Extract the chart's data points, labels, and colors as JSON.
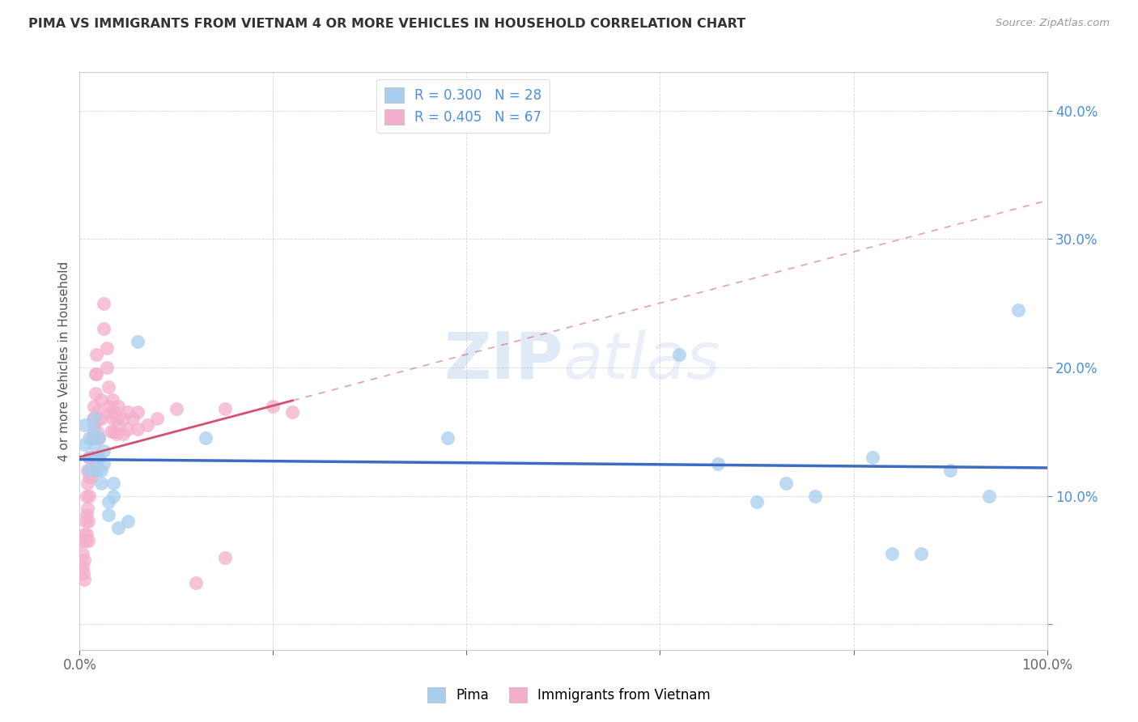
{
  "title": "PIMA VS IMMIGRANTS FROM VIETNAM 4 OR MORE VEHICLES IN HOUSEHOLD CORRELATION CHART",
  "source": "Source: ZipAtlas.com",
  "ylabel": "4 or more Vehicles in Household",
  "xlim": [
    0.0,
    1.0
  ],
  "ylim": [
    -0.02,
    0.43
  ],
  "yticks": [
    0.0,
    0.1,
    0.2,
    0.3,
    0.4
  ],
  "ytick_labels": [
    "",
    "10.0%",
    "20.0%",
    "30.0%",
    "40.0%"
  ],
  "xticks": [
    0.0,
    0.2,
    0.4,
    0.6,
    0.8,
    1.0
  ],
  "xtick_labels": [
    "0.0%",
    "",
    "",
    "",
    "",
    "100.0%"
  ],
  "color_blue": "#A8CEEE",
  "color_pink": "#F4AECB",
  "color_blue_line": "#3B6BC4",
  "color_pink_line": "#D45070",
  "watermark_color": "#C5D8F0",
  "pima_points": [
    [
      0.005,
      0.14
    ],
    [
      0.005,
      0.155
    ],
    [
      0.01,
      0.145
    ],
    [
      0.01,
      0.13
    ],
    [
      0.01,
      0.12
    ],
    [
      0.015,
      0.16
    ],
    [
      0.015,
      0.15
    ],
    [
      0.015,
      0.14
    ],
    [
      0.018,
      0.13
    ],
    [
      0.018,
      0.12
    ],
    [
      0.02,
      0.145
    ],
    [
      0.02,
      0.13
    ],
    [
      0.022,
      0.12
    ],
    [
      0.022,
      0.11
    ],
    [
      0.025,
      0.135
    ],
    [
      0.025,
      0.125
    ],
    [
      0.03,
      0.095
    ],
    [
      0.03,
      0.085
    ],
    [
      0.035,
      0.11
    ],
    [
      0.035,
      0.1
    ],
    [
      0.04,
      0.075
    ],
    [
      0.05,
      0.08
    ],
    [
      0.06,
      0.22
    ],
    [
      0.13,
      0.145
    ],
    [
      0.38,
      0.145
    ],
    [
      0.62,
      0.21
    ],
    [
      0.66,
      0.125
    ],
    [
      0.7,
      0.095
    ],
    [
      0.73,
      0.11
    ],
    [
      0.76,
      0.1
    ],
    [
      0.82,
      0.13
    ],
    [
      0.84,
      0.055
    ],
    [
      0.87,
      0.055
    ],
    [
      0.9,
      0.12
    ],
    [
      0.94,
      0.1
    ],
    [
      0.97,
      0.245
    ]
  ],
  "vietnam_points": [
    [
      0.002,
      0.065
    ],
    [
      0.003,
      0.055
    ],
    [
      0.003,
      0.045
    ],
    [
      0.004,
      0.04
    ],
    [
      0.005,
      0.07
    ],
    [
      0.005,
      0.05
    ],
    [
      0.005,
      0.035
    ],
    [
      0.006,
      0.08
    ],
    [
      0.006,
      0.065
    ],
    [
      0.007,
      0.1
    ],
    [
      0.007,
      0.085
    ],
    [
      0.007,
      0.07
    ],
    [
      0.008,
      0.12
    ],
    [
      0.008,
      0.11
    ],
    [
      0.008,
      0.09
    ],
    [
      0.009,
      0.08
    ],
    [
      0.009,
      0.065
    ],
    [
      0.01,
      0.13
    ],
    [
      0.01,
      0.115
    ],
    [
      0.01,
      0.1
    ],
    [
      0.012,
      0.13
    ],
    [
      0.012,
      0.115
    ],
    [
      0.013,
      0.145
    ],
    [
      0.013,
      0.13
    ],
    [
      0.013,
      0.12
    ],
    [
      0.014,
      0.16
    ],
    [
      0.014,
      0.145
    ],
    [
      0.015,
      0.17
    ],
    [
      0.015,
      0.155
    ],
    [
      0.016,
      0.195
    ],
    [
      0.016,
      0.18
    ],
    [
      0.017,
      0.21
    ],
    [
      0.017,
      0.195
    ],
    [
      0.018,
      0.165
    ],
    [
      0.018,
      0.15
    ],
    [
      0.019,
      0.145
    ],
    [
      0.019,
      0.13
    ],
    [
      0.02,
      0.16
    ],
    [
      0.02,
      0.145
    ],
    [
      0.022,
      0.175
    ],
    [
      0.022,
      0.16
    ],
    [
      0.025,
      0.25
    ],
    [
      0.025,
      0.23
    ],
    [
      0.028,
      0.215
    ],
    [
      0.028,
      0.2
    ],
    [
      0.03,
      0.185
    ],
    [
      0.03,
      0.17
    ],
    [
      0.032,
      0.165
    ],
    [
      0.032,
      0.15
    ],
    [
      0.034,
      0.175
    ],
    [
      0.034,
      0.16
    ],
    [
      0.036,
      0.165
    ],
    [
      0.036,
      0.15
    ],
    [
      0.038,
      0.16
    ],
    [
      0.038,
      0.148
    ],
    [
      0.04,
      0.17
    ],
    [
      0.04,
      0.155
    ],
    [
      0.045,
      0.16
    ],
    [
      0.045,
      0.148
    ],
    [
      0.05,
      0.165
    ],
    [
      0.05,
      0.152
    ],
    [
      0.055,
      0.16
    ],
    [
      0.06,
      0.165
    ],
    [
      0.06,
      0.152
    ],
    [
      0.07,
      0.155
    ],
    [
      0.08,
      0.16
    ],
    [
      0.1,
      0.168
    ],
    [
      0.12,
      0.032
    ],
    [
      0.15,
      0.168
    ],
    [
      0.15,
      0.052
    ],
    [
      0.2,
      0.17
    ],
    [
      0.22,
      0.165
    ]
  ]
}
